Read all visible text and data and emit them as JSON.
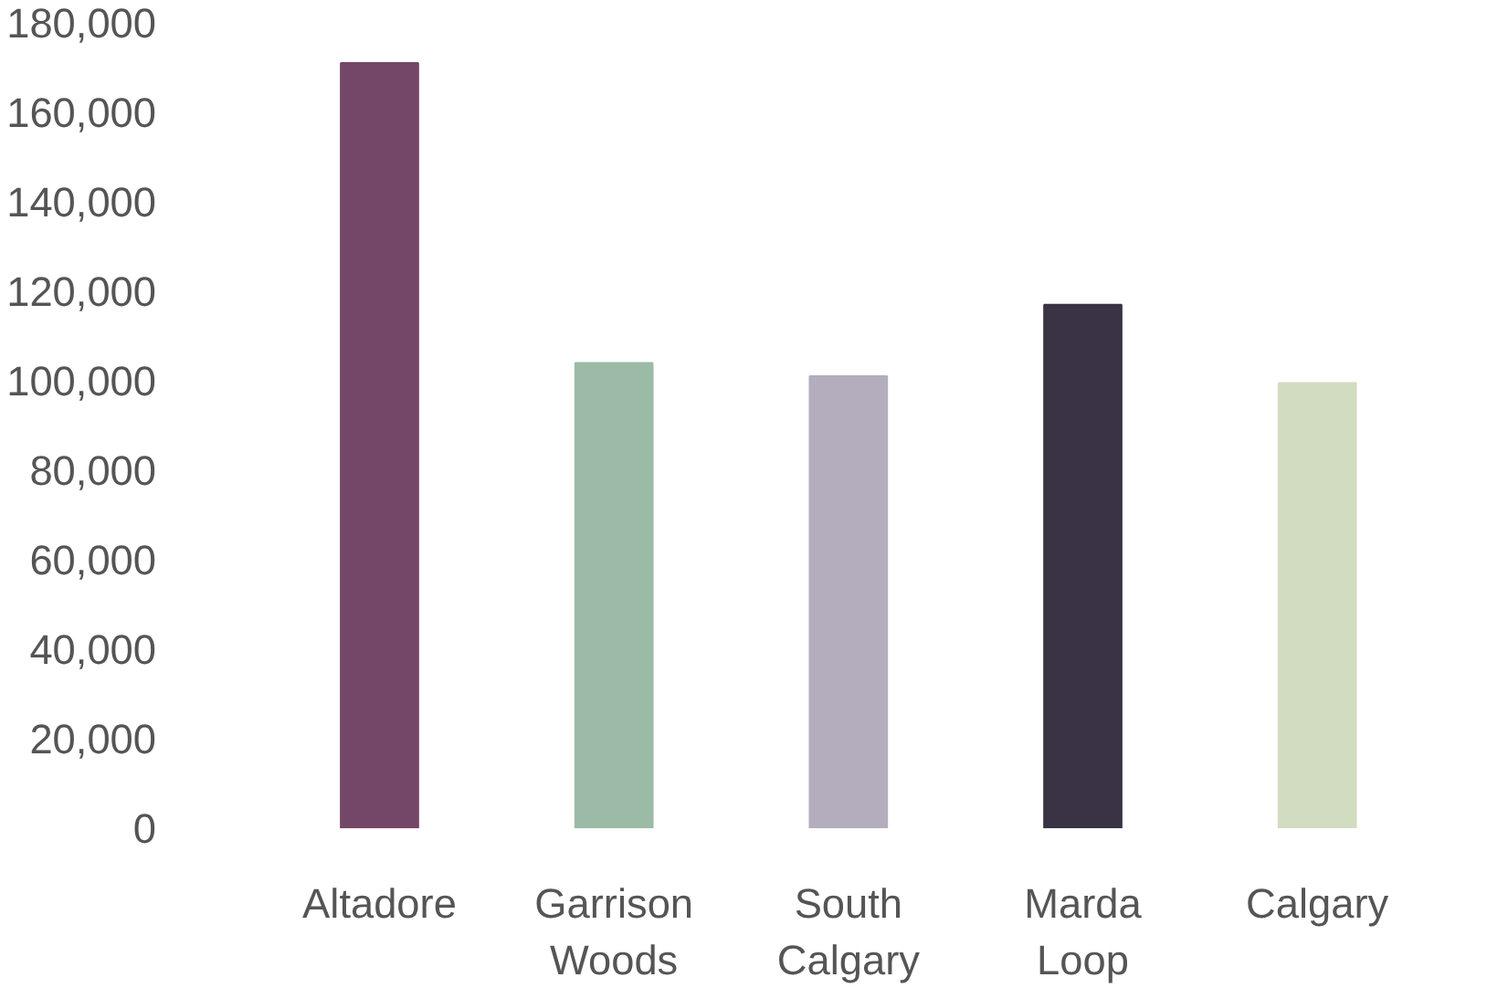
{
  "chart_data": {
    "type": "bar",
    "categories": [
      "Altadore",
      "Garrison Woods",
      "South Calgary",
      "Marda Loop",
      "Calgary"
    ],
    "values": [
      171000,
      104000,
      101000,
      117000,
      99500
    ],
    "colors": [
      "#744668",
      "#9bbba6",
      "#b3adbd",
      "#3a3346",
      "#d2dcc0"
    ],
    "ylim": [
      0,
      180000
    ],
    "yticks": [
      {
        "value": 0,
        "label": "0"
      },
      {
        "value": 20000,
        "label": "20,000"
      },
      {
        "value": 40000,
        "label": "40,000"
      },
      {
        "value": 60000,
        "label": "60,000"
      },
      {
        "value": 80000,
        "label": "80,000"
      },
      {
        "value": 100000,
        "label": "100,000"
      },
      {
        "value": 120000,
        "label": "120,000"
      },
      {
        "value": 140000,
        "label": "140,000"
      },
      {
        "value": 160000,
        "label": "160,000"
      },
      {
        "value": 180000,
        "label": "180,000"
      }
    ],
    "grid": false
  }
}
